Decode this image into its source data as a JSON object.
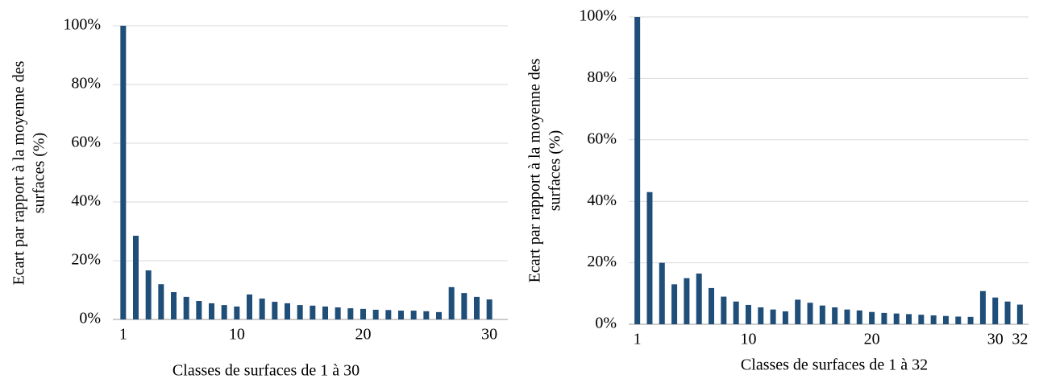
{
  "chart_data": [
    {
      "type": "bar",
      "ylabel": [
        "Ecart par rapport à la moyenne des",
        "surfaces (%)"
      ],
      "xlabel": "Classes de surfaces de 1 à 30",
      "categories": [
        "1",
        null,
        null,
        null,
        null,
        null,
        null,
        null,
        null,
        "10",
        null,
        null,
        null,
        null,
        null,
        null,
        null,
        null,
        null,
        "20",
        null,
        null,
        null,
        null,
        null,
        null,
        null,
        null,
        null,
        "30"
      ],
      "values": [
        100,
        28.5,
        16.7,
        12,
        9.3,
        7.7,
        6.3,
        5.5,
        4.9,
        4.4,
        8.5,
        7.1,
        6,
        5.5,
        4.9,
        4.7,
        4.4,
        4.1,
        3.8,
        3.6,
        3.3,
        3.2,
        3,
        3,
        2.8,
        2.5,
        11,
        9,
        7.7,
        6.8
      ],
      "color": "#1f4e79",
      "ylim": [
        0,
        100
      ],
      "yticks": [
        {
          "value": 0,
          "label": "0%"
        },
        {
          "value": 20,
          "label": "20%"
        },
        {
          "value": 40,
          "label": "40%"
        },
        {
          "value": 60,
          "label": "60%"
        },
        {
          "value": 80,
          "label": "80%"
        },
        {
          "value": 100,
          "label": "100%"
        }
      ],
      "grid": true
    },
    {
      "type": "bar",
      "ylabel": [
        "Ecart par rapport à la moyenne des",
        "surfaces (%)"
      ],
      "xlabel": "Classes de surfaces de 1 à 32",
      "categories": [
        "1",
        null,
        null,
        null,
        null,
        null,
        null,
        null,
        null,
        "10",
        null,
        null,
        null,
        null,
        null,
        null,
        null,
        null,
        null,
        "20",
        null,
        null,
        null,
        null,
        null,
        null,
        null,
        null,
        null,
        "30",
        null,
        "32"
      ],
      "values": [
        100,
        43,
        20,
        13,
        15,
        16.5,
        11.8,
        9,
        7.4,
        6.3,
        5.5,
        4.8,
        4.2,
        8,
        7,
        6.1,
        5.5,
        4.8,
        4.5,
        4,
        3.7,
        3.5,
        3.3,
        3.1,
        2.9,
        2.7,
        2.5,
        2.4,
        10.8,
        8.7,
        7.4,
        6.4
      ],
      "color": "#1f4e79",
      "ylim": [
        0,
        100
      ],
      "yticks": [
        {
          "value": 0,
          "label": "0%"
        },
        {
          "value": 20,
          "label": "20%"
        },
        {
          "value": 40,
          "label": "40%"
        },
        {
          "value": 60,
          "label": "60%"
        },
        {
          "value": 80,
          "label": "80%"
        },
        {
          "value": 100,
          "label": "100%"
        }
      ],
      "grid": true
    }
  ]
}
